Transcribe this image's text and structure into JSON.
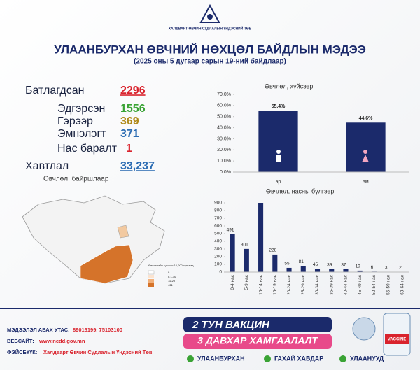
{
  "header": {
    "org": "ХАЛДВАРТ ӨВЧИН СУДЛАЛЫН ҮНДЭСНИЙ ТӨВ",
    "title": "УЛААНБУРХАН ӨВЧНИЙ НӨХЦӨЛ БАЙДЛЫН МЭДЭЭ",
    "subtitle": "(2025 оны 5 дугаар сарын 19-ний байдлаар)"
  },
  "stats": [
    {
      "label": "Батлагдсан",
      "value": "2296"
    },
    {
      "label": "Эдгэрсэн",
      "value": "1556"
    },
    {
      "label": "Гэрээр",
      "value": "369"
    },
    {
      "label": "Эмнэлэгт",
      "value": "371"
    },
    {
      "label": "Нас баралт",
      "value": "1"
    },
    {
      "label": "Хавтлал",
      "value": "33,237"
    }
  ],
  "map": {
    "title": "Өвчлөл, байршлаар",
    "legend_title": "Өвчлөлийн түвшин 10,000 хүн амд",
    "legend": [
      "0",
      "0.1-10",
      "11-20",
      ">21"
    ]
  },
  "chart_data": [
    {
      "type": "bar",
      "title": "Өвчлөл, хүйсээр",
      "categories": [
        "эр",
        "эм"
      ],
      "values": [
        55.4,
        44.6
      ],
      "value_labels": [
        "55.4%",
        "44.6%"
      ],
      "color": "#1b2a6b",
      "ylim": [
        0,
        70
      ],
      "yticks": [
        {
          "value": 0,
          "label": "0.0%"
        },
        {
          "value": 10,
          "label": "10.0%"
        },
        {
          "value": 20,
          "label": "20.0%"
        },
        {
          "value": 30,
          "label": "30.0%"
        },
        {
          "value": 40,
          "label": "40.0%"
        },
        {
          "value": 50,
          "label": "50.0%"
        },
        {
          "value": 60,
          "label": "60.0%"
        },
        {
          "value": 70,
          "label": "70.0%"
        }
      ]
    },
    {
      "type": "bar",
      "title": "Өвчлөл, насны бүлгээр",
      "categories": [
        "0-4 нас",
        "5-9 нас",
        "10-14 нас",
        "15-19 нас",
        "20-24 нас",
        "25-29 нас",
        "30-34 нас",
        "35-39 нас",
        "40-44 нас",
        "45-49 нас",
        "50-54 нас",
        "55-59 нас",
        "60-64 нас"
      ],
      "values": [
        491,
        301,
        900,
        228,
        55,
        81,
        45,
        39,
        37,
        19,
        6,
        3,
        2
      ],
      "value_labels": [
        "491",
        "301",
        null,
        "228",
        "55",
        "81",
        "45",
        "39",
        "37",
        "19",
        "6",
        "3",
        "2"
      ],
      "color": "#1b2a6b",
      "ylim": [
        0,
        900
      ],
      "yticks": [
        0,
        100,
        200,
        300,
        400,
        500,
        600,
        700,
        800,
        900
      ]
    }
  ],
  "footer": {
    "phone_label": "МЭДЭЭЛЭЛ АВАХ УТАС:",
    "phone": "89016199,  75103100",
    "web_label": "ВЕБСАЙТ:",
    "web": "www.ncdd.gov.mn",
    "fb_label": "ФЭЙСБҮҮК:",
    "fb": "Халдварт Өвчин Судлалын Үндэсний Төв",
    "banner1": "2 ТУН ВАКЦИН",
    "banner2": "3 ДАВХАР ХАМГААЛАЛТ",
    "checks": [
      "УЛААНБУРХАН",
      "ГАХАЙ ХАВДАР",
      "УЛААНУУД"
    ],
    "vial": "VACCINE"
  }
}
